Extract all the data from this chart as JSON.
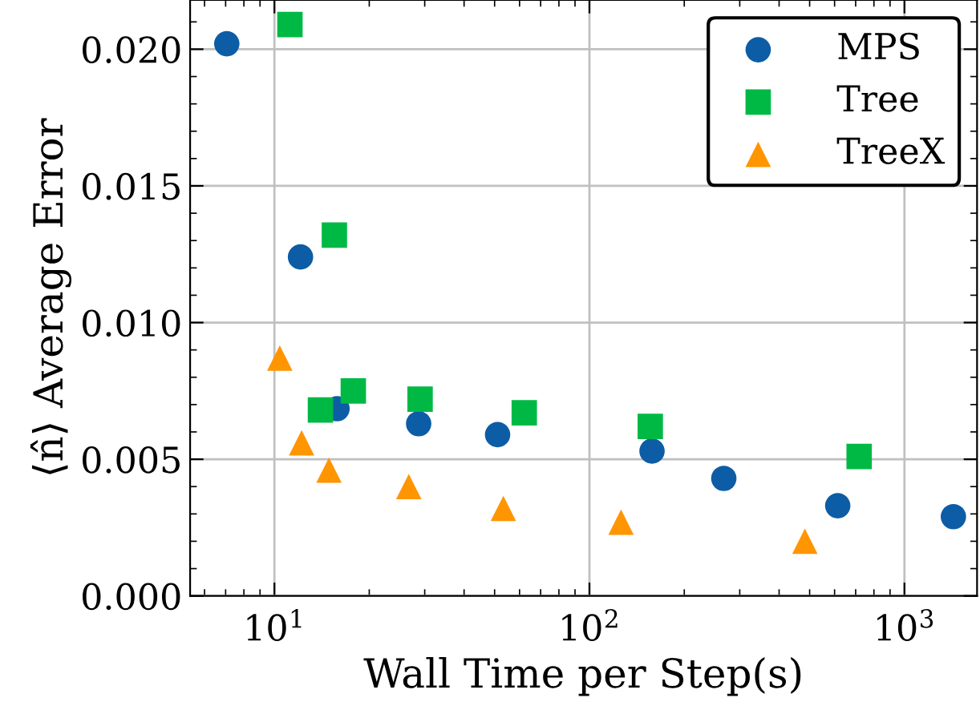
{
  "chart_data": {
    "type": "scatter",
    "xlabel": "Wall Time per Step(s)",
    "ylabel": "⟨n̂⟩ Average Error",
    "log": "x",
    "xlim": [
      5.4,
      1700
    ],
    "xticks": [
      {
        "value": 10,
        "label": "10$^{1}$"
      },
      {
        "value": 100,
        "label": "10$^{2}$"
      },
      {
        "value": 1000,
        "label": "10$^{3}$"
      }
    ],
    "ylim": [
      0,
      0.0218
    ],
    "yticks": [
      {
        "value": 0,
        "label": "0.000"
      },
      {
        "value": 0.005,
        "label": "0.005"
      },
      {
        "value": 0.01,
        "label": "0.010"
      },
      {
        "value": 0.015,
        "label": "0.015"
      },
      {
        "value": 0.02,
        "label": "0.020"
      }
    ],
    "grid": true,
    "legend": "top right",
    "series": [
      {
        "name": "MPS",
        "color": "#0c5da5",
        "marker": "circle",
        "x": [
          7.06,
          12.1,
          15.8,
          28.7,
          51.1,
          158,
          267,
          614,
          1430
        ],
        "values": [
          0.0202,
          0.0124,
          0.00685,
          0.0063,
          0.0059,
          0.0053,
          0.0043,
          0.0033,
          0.0029
        ]
      },
      {
        "name": "Tree",
        "color": "#00b945",
        "marker": "square",
        "x": [
          11.2,
          15.5,
          14.0,
          17.8,
          29.0,
          62.1,
          156,
          718
        ],
        "values": [
          0.0209,
          0.0132,
          0.0068,
          0.0075,
          0.0072,
          0.0067,
          0.0062,
          0.0051
        ]
      },
      {
        "name": "TreeX",
        "color": "#ff9500",
        "marker": "triangle",
        "x": [
          10.4,
          12.2,
          14.9,
          26.7,
          53.3,
          126,
          483
        ],
        "values": [
          0.0087,
          0.0056,
          0.0046,
          0.004,
          0.0032,
          0.0027,
          0.002
        ]
      }
    ]
  }
}
